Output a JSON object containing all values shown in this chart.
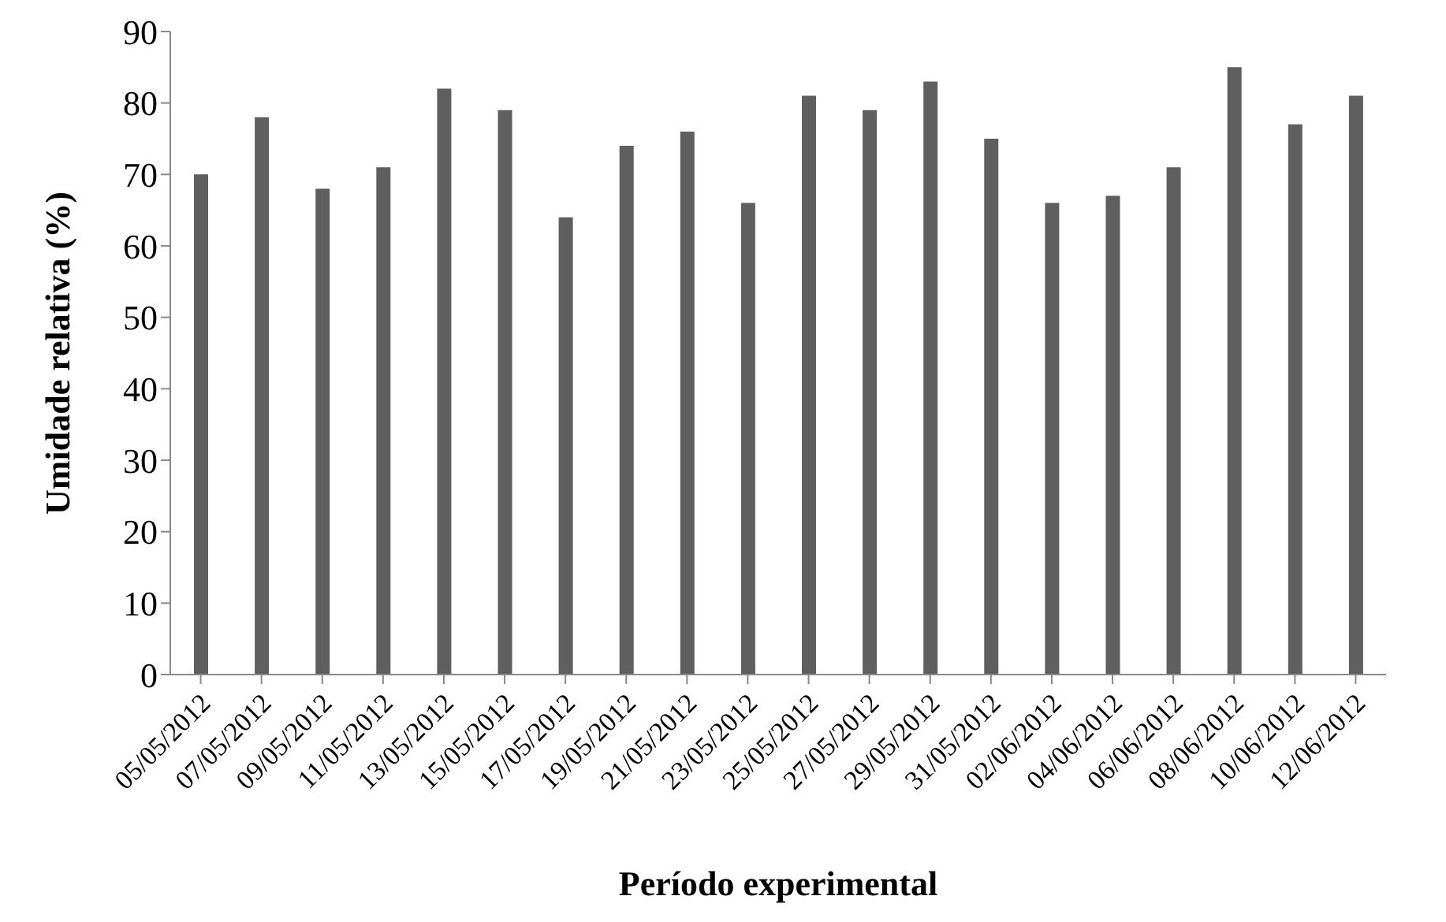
{
  "chart_data": {
    "type": "bar",
    "xlabel": "Período experimental",
    "ylabel": "Umidade relativa (%)",
    "categories": [
      "05/05/2012",
      "07/05/2012",
      "09/05/2012",
      "11/05/2012",
      "13/05/2012",
      "15/05/2012",
      "17/05/2012",
      "19/05/2012",
      "21/05/2012",
      "23/05/2012",
      "25/05/2012",
      "27/05/2012",
      "29/05/2012",
      "31/05/2012",
      "02/06/2012",
      "04/06/2012",
      "06/06/2012",
      "08/06/2012",
      "10/06/2012",
      "12/06/2012"
    ],
    "values": [
      70,
      78,
      68,
      71,
      82,
      79,
      64,
      74,
      76,
      66,
      81,
      79,
      83,
      75,
      66,
      67,
      71,
      85,
      77,
      81
    ],
    "color": "#5f5f5f",
    "ylim": [
      0,
      90
    ],
    "yticks": [
      0,
      10,
      20,
      30,
      40,
      50,
      60,
      70,
      80,
      90
    ],
    "grid": false,
    "legend": false
  }
}
